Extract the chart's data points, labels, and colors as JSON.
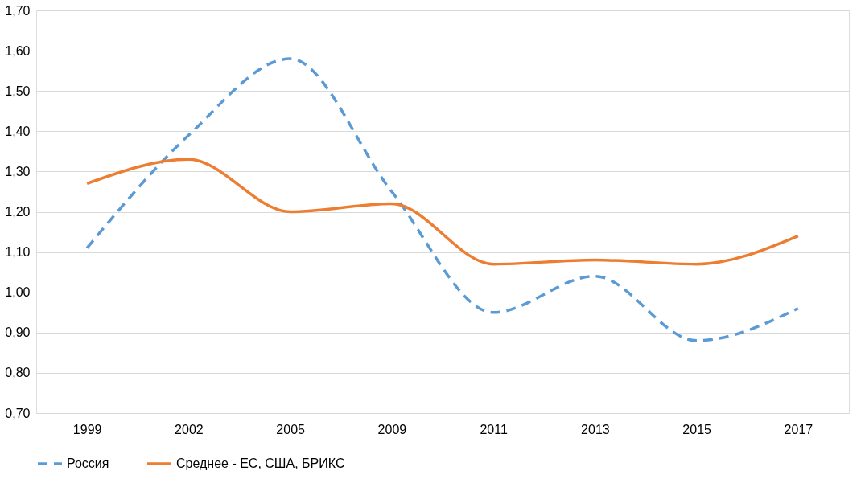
{
  "chart_data": {
    "type": "line",
    "categories": [
      "1999",
      "2002",
      "2005",
      "2009",
      "2011",
      "2013",
      "2015",
      "2017"
    ],
    "series": [
      {
        "name": "Россия",
        "color": "#5b9bd5",
        "line_style": "dashed",
        "values": [
          1.11,
          1.39,
          1.58,
          1.25,
          0.95,
          1.04,
          0.88,
          0.96
        ]
      },
      {
        "name": "Среднее - ЕС, США, БРИКС",
        "color": "#ed7d31",
        "line_style": "solid",
        "values": [
          1.27,
          1.33,
          1.2,
          1.22,
          1.07,
          1.08,
          1.07,
          1.14
        ]
      }
    ],
    "ylim": [
      0.7,
      1.7
    ],
    "yticks": [
      {
        "value": 0.7,
        "label": "0,70"
      },
      {
        "value": 0.8,
        "label": "0,80"
      },
      {
        "value": 0.9,
        "label": "0,90"
      },
      {
        "value": 1.0,
        "label": "1,00"
      },
      {
        "value": 1.1,
        "label": "1,10"
      },
      {
        "value": 1.2,
        "label": "1,20"
      },
      {
        "value": 1.3,
        "label": "1,30"
      },
      {
        "value": 1.4,
        "label": "1,40"
      },
      {
        "value": 1.5,
        "label": "1,50"
      },
      {
        "value": 1.6,
        "label": "1,60"
      },
      {
        "value": 1.7,
        "label": "1,70"
      }
    ],
    "grid": "y",
    "legend": "bottom"
  }
}
